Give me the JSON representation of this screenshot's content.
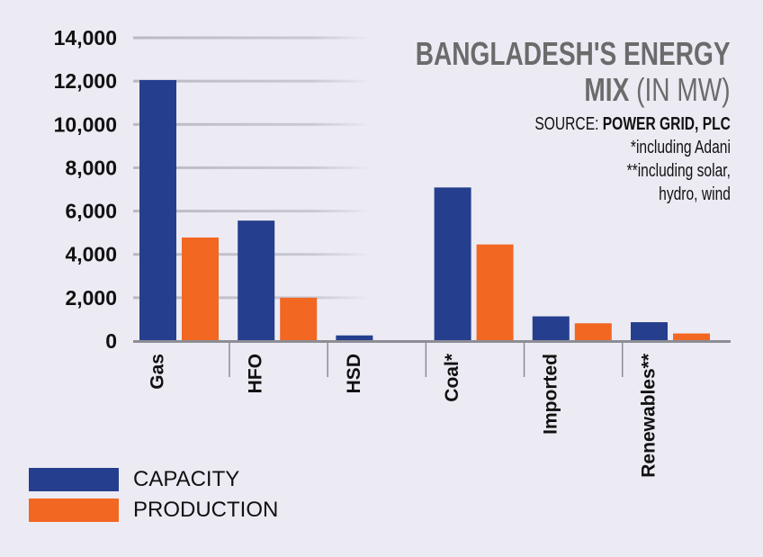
{
  "colors": {
    "capacity": "#253f8e",
    "production": "#f26722",
    "background": "#ecebf4",
    "title": "#6b6b6b"
  },
  "title": {
    "main_line1": "BANGLADESH'S ENERGY",
    "main_line2": "MIX",
    "unit": "(IN MW)"
  },
  "notes": {
    "source_label": "SOURCE:",
    "source_value": "POWER GRID, PLC",
    "note1": "*including Adani",
    "note2": "**including solar,",
    "note3": "hydro, wind"
  },
  "chart_data": {
    "type": "bar",
    "title": "BANGLADESH'S ENERGY MIX (IN MW)",
    "xlabel": "",
    "ylabel": "",
    "ylim": [
      0,
      14000
    ],
    "yticks": [
      0,
      2000,
      4000,
      6000,
      8000,
      10000,
      12000,
      14000
    ],
    "ytick_labels": [
      "0",
      "2,000",
      "4,000",
      "6,000",
      "8,000",
      "10,000",
      "12,000",
      "14,000"
    ],
    "categories": [
      "Gas",
      "HFO",
      "HSD",
      "Coal*",
      "Imported",
      "Renewables**"
    ],
    "series": [
      {
        "name": "CAPACITY",
        "values": [
          12050,
          5560,
          260,
          7090,
          1140,
          870
        ]
      },
      {
        "name": "PRODUCTION",
        "values": [
          4780,
          2000,
          0,
          4460,
          820,
          350
        ]
      }
    ],
    "grid": true,
    "legend": "bottom-left"
  }
}
